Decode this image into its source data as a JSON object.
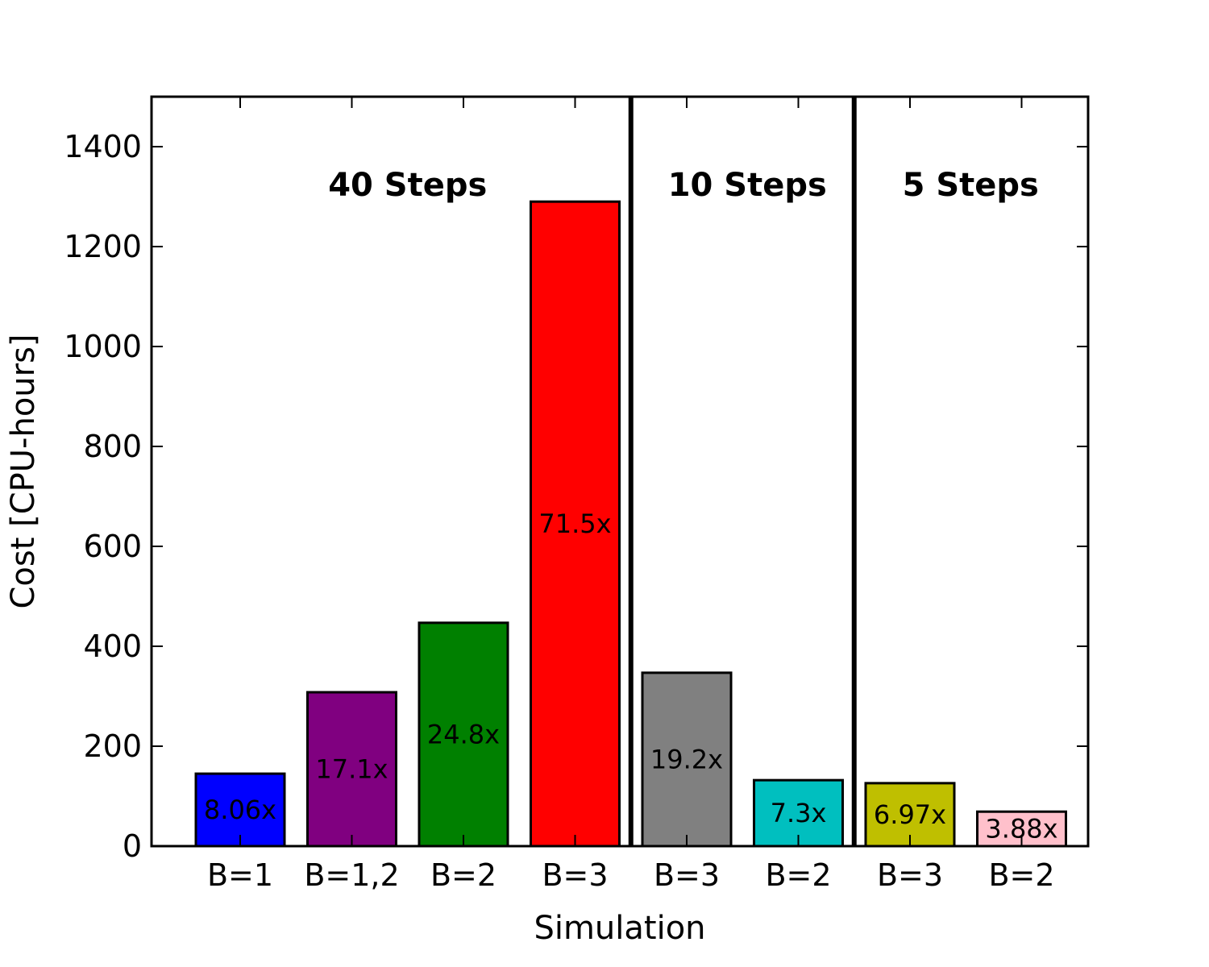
{
  "chart_data": {
    "type": "bar",
    "xlabel": "Simulation",
    "ylabel": "Cost [CPU-hours]",
    "ylim": [
      0,
      1500
    ],
    "yticks": [
      0,
      200,
      400,
      600,
      800,
      1000,
      1200,
      1400
    ],
    "grid": false,
    "categories": [
      "B=1",
      "B=1,2",
      "B=2",
      "B=3",
      "B=3",
      "B=2",
      "B=3",
      "B=2"
    ],
    "values": [
      145,
      308,
      447,
      1290,
      347,
      132,
      126,
      69
    ],
    "bar_labels": [
      "8.06x",
      "17.1x",
      "24.8x",
      "71.5x",
      "19.2x",
      "7.3x",
      "6.97x",
      "3.88x"
    ],
    "colors": [
      "#0000ff",
      "#800080",
      "#008000",
      "#ff0000",
      "#808080",
      "#00bfbf",
      "#bfbf00",
      "#ffc0cb"
    ],
    "groups": [
      {
        "label": "40 Steps",
        "bars": [
          0,
          1,
          2,
          3
        ]
      },
      {
        "label": "10 Steps",
        "bars": [
          4,
          5
        ]
      },
      {
        "label": "5 Steps",
        "bars": [
          6,
          7
        ]
      }
    ]
  }
}
